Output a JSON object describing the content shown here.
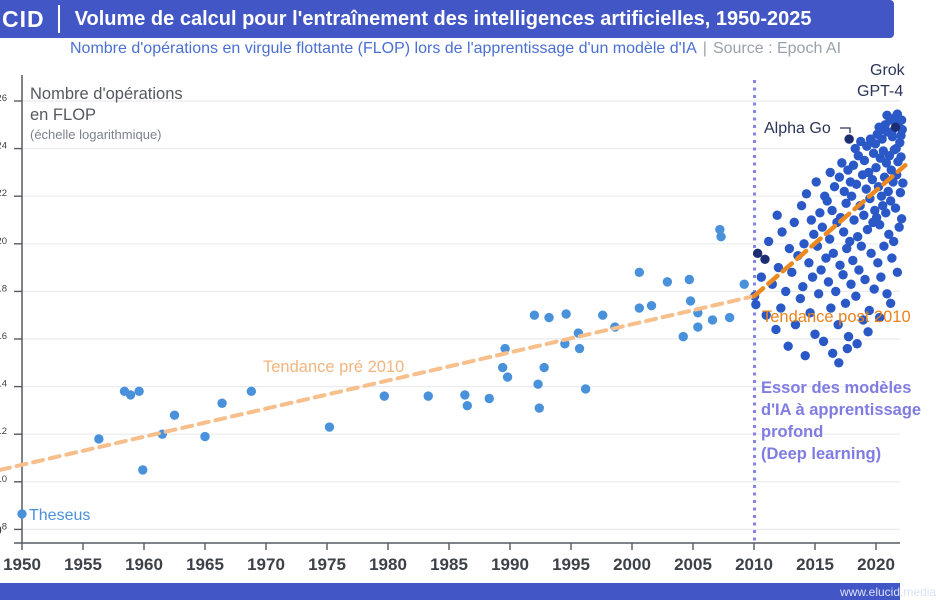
{
  "header": {
    "logo": "CID",
    "title": "Volume de calcul pour l'entraînement des intelligences artificielles, 1950-2025"
  },
  "subtitle": {
    "text": "Nombre d'opérations en virgule flottante (FLOP) lors de l'apprentissage d'un modèle d'IA",
    "separator": "|",
    "source": "Source : Epoch AI"
  },
  "footer": {
    "url": "www.elucid.media"
  },
  "colors": {
    "header_bg": "#4356c6",
    "grid": "#e9ebee",
    "axis": "#565b61",
    "tick_text": "#3d4248",
    "dot_pre": "#4a91dc",
    "dot_post": "#2a58c6",
    "dot_highlight": "#1d2d72",
    "trend_pre": "#f6bf8b",
    "trend_pre_label": "#f3b57d",
    "trend_post": "#eb8a22",
    "trend_post_label": "#e8821c",
    "purple_line": "#8583e6",
    "note_text": "#7f7ce2",
    "annotation_text": "#2b3558",
    "theseus_text": "#4a91dc",
    "plot_label": "#55595f",
    "plot_label_sub": "#7d828a"
  },
  "chart_data": {
    "type": "scatter",
    "x_axis": {
      "label": "",
      "ticks": [
        1950,
        1955,
        1960,
        1965,
        1970,
        1975,
        1980,
        1985,
        1990,
        1995,
        2000,
        2005,
        2010,
        2015,
        2020
      ],
      "range": [
        1948,
        2022.5
      ]
    },
    "y_axis": {
      "scale": "log",
      "unit": "FLOP",
      "tick_exponents": [
        26,
        24,
        22,
        20,
        18,
        16,
        14,
        12,
        10,
        8
      ],
      "range_exponents": [
        7.4,
        27
      ]
    },
    "grid": "horizontal-only",
    "labels": {
      "plot_label_lines": [
        "Nombre d'opérations",
        "en FLOP"
      ],
      "plot_label_sub": "(échelle logarithmique)",
      "trend_pre": "Tendance pré 2010",
      "trend_post": "Tendance post 2010",
      "note_lines": [
        "Essor des modèles",
        "d'IA à apprentissage",
        "profond",
        "(Deep learning)"
      ],
      "theseus": "Theseus",
      "alpha_go": "Alpha Go",
      "grok": "Grok",
      "gpt4": "GPT-4"
    },
    "divider_year": 2010,
    "trend_lines": [
      {
        "name": "pre",
        "label": "Tendance pré 2010",
        "points": [
          [
            1948.2,
            10.5
          ],
          [
            2010.0,
            17.8
          ]
        ]
      },
      {
        "name": "post",
        "label": "Tendance post 2010",
        "points": [
          [
            2010.0,
            17.8
          ],
          [
            2022.4,
            23.3
          ]
        ]
      }
    ],
    "series": [
      {
        "name": "pre-2010",
        "color_key": "dot_pre",
        "points": [
          [
            1950.0,
            8.65
          ],
          [
            1956.3,
            11.8
          ],
          [
            1958.4,
            13.8
          ],
          [
            1958.9,
            13.65
          ],
          [
            1959.6,
            13.8
          ],
          [
            1959.9,
            10.5
          ],
          [
            1961.5,
            12.0
          ],
          [
            1962.5,
            12.8
          ],
          [
            1965.0,
            11.9
          ],
          [
            1966.4,
            13.3
          ],
          [
            1968.8,
            13.8
          ],
          [
            1975.2,
            12.3
          ],
          [
            1979.7,
            13.6
          ],
          [
            1983.3,
            13.6
          ],
          [
            1986.3,
            13.65
          ],
          [
            1986.5,
            13.2
          ],
          [
            1988.3,
            13.5
          ],
          [
            1989.4,
            14.8
          ],
          [
            1989.6,
            15.6
          ],
          [
            1989.8,
            14.4
          ],
          [
            1992.0,
            17.0
          ],
          [
            1992.3,
            14.1
          ],
          [
            1992.4,
            13.1
          ],
          [
            1992.8,
            14.8
          ],
          [
            1993.2,
            16.9
          ],
          [
            1994.5,
            15.8
          ],
          [
            1994.6,
            17.05
          ],
          [
            1995.6,
            16.25
          ],
          [
            1995.7,
            15.6
          ],
          [
            1996.2,
            13.9
          ],
          [
            1997.6,
            17.0
          ],
          [
            1998.6,
            16.5
          ],
          [
            2000.6,
            18.8
          ],
          [
            2000.6,
            17.3
          ],
          [
            2001.6,
            17.4
          ],
          [
            2002.9,
            18.4
          ],
          [
            2004.2,
            16.1
          ],
          [
            2004.7,
            18.5
          ],
          [
            2004.8,
            17.6
          ],
          [
            2005.4,
            17.1
          ],
          [
            2005.4,
            16.5
          ],
          [
            2006.6,
            16.8
          ],
          [
            2007.2,
            20.6
          ],
          [
            2007.3,
            20.3
          ],
          [
            2008.0,
            16.9
          ],
          [
            2009.2,
            18.3
          ]
        ]
      },
      {
        "name": "post-2010",
        "color_key": "dot_post",
        "points": [
          [
            2010.05,
            17.8
          ],
          [
            2010.15,
            17.45
          ],
          [
            2010.6,
            18.6
          ],
          [
            2011.0,
            17.0
          ],
          [
            2011.2,
            20.1
          ],
          [
            2011.5,
            18.3
          ],
          [
            2011.8,
            16.4
          ],
          [
            2011.9,
            21.2
          ],
          [
            2012.0,
            19.0
          ],
          [
            2012.2,
            17.3
          ],
          [
            2012.3,
            20.5
          ],
          [
            2012.6,
            18.0
          ],
          [
            2012.8,
            15.7
          ],
          [
            2012.9,
            19.8
          ],
          [
            2013.1,
            18.8
          ],
          [
            2013.3,
            20.9
          ],
          [
            2013.4,
            16.6
          ],
          [
            2013.6,
            19.5
          ],
          [
            2013.8,
            17.7
          ],
          [
            2013.9,
            21.6
          ],
          [
            2014.0,
            18.2
          ],
          [
            2014.1,
            20.0
          ],
          [
            2014.2,
            15.3
          ],
          [
            2014.3,
            22.1
          ],
          [
            2014.5,
            19.2
          ],
          [
            2014.6,
            17.1
          ],
          [
            2014.7,
            21.0
          ],
          [
            2014.8,
            18.6
          ],
          [
            2014.9,
            20.4
          ],
          [
            2015.0,
            16.2
          ],
          [
            2015.1,
            22.6
          ],
          [
            2015.2,
            19.9
          ],
          [
            2015.3,
            17.9
          ],
          [
            2015.4,
            21.3
          ],
          [
            2015.5,
            18.9
          ],
          [
            2015.6,
            20.7
          ],
          [
            2015.7,
            15.9
          ],
          [
            2015.8,
            22.0
          ],
          [
            2015.9,
            19.4
          ],
          [
            2016.0,
            21.8
          ],
          [
            2016.1,
            18.4
          ],
          [
            2016.2,
            20.2
          ],
          [
            2016.25,
            23.0
          ],
          [
            2016.3,
            17.3
          ],
          [
            2016.4,
            21.4
          ],
          [
            2016.45,
            15.4
          ],
          [
            2016.5,
            19.6
          ],
          [
            2016.6,
            22.4
          ],
          [
            2016.7,
            18.0
          ],
          [
            2016.8,
            20.9
          ],
          [
            2016.9,
            16.6
          ],
          [
            2016.95,
            15.0
          ],
          [
            2017.0,
            22.8
          ],
          [
            2017.05,
            19.1
          ],
          [
            2017.1,
            21.1
          ],
          [
            2017.2,
            23.4
          ],
          [
            2017.3,
            18.7
          ],
          [
            2017.35,
            20.5
          ],
          [
            2017.4,
            22.2
          ],
          [
            2017.5,
            17.5
          ],
          [
            2017.55,
            21.7
          ],
          [
            2017.6,
            19.8
          ],
          [
            2017.65,
            15.6
          ],
          [
            2017.7,
            23.1
          ],
          [
            2017.75,
            16.1
          ],
          [
            2017.85,
            20.1
          ],
          [
            2017.9,
            22.6
          ],
          [
            2017.95,
            18.3
          ],
          [
            2018.0,
            22.0
          ],
          [
            2018.1,
            19.3
          ],
          [
            2018.15,
            23.3
          ],
          [
            2018.2,
            21.0
          ],
          [
            2018.3,
            24.0
          ],
          [
            2018.35,
            17.8
          ],
          [
            2018.4,
            22.5
          ],
          [
            2018.45,
            15.8
          ],
          [
            2018.5,
            20.3
          ],
          [
            2018.55,
            23.7
          ],
          [
            2018.6,
            18.9
          ],
          [
            2018.7,
            21.6
          ],
          [
            2018.75,
            24.3
          ],
          [
            2018.8,
            19.9
          ],
          [
            2018.9,
            22.9
          ],
          [
            2018.95,
            16.8
          ],
          [
            2019.0,
            21.2
          ],
          [
            2019.05,
            23.5
          ],
          [
            2019.1,
            18.5
          ],
          [
            2019.2,
            22.3
          ],
          [
            2019.25,
            24.1
          ],
          [
            2019.3,
            20.6
          ],
          [
            2019.35,
            16.3
          ],
          [
            2019.4,
            23.0
          ],
          [
            2019.45,
            17.2
          ],
          [
            2019.5,
            21.9
          ],
          [
            2019.55,
            24.4
          ],
          [
            2019.6,
            19.6
          ],
          [
            2019.7,
            22.7
          ],
          [
            2019.75,
            20.9
          ],
          [
            2019.8,
            23.8
          ],
          [
            2019.85,
            18.1
          ],
          [
            2019.9,
            21.4
          ],
          [
            2019.95,
            24.2
          ],
          [
            2020.0,
            23.2
          ],
          [
            2020.05,
            21.1
          ],
          [
            2020.1,
            24.6
          ],
          [
            2020.15,
            19.2
          ],
          [
            2020.2,
            22.4
          ],
          [
            2020.25,
            24.9
          ],
          [
            2020.3,
            20.8
          ],
          [
            2020.3,
            16.9
          ],
          [
            2020.35,
            23.6
          ],
          [
            2020.4,
            18.6
          ],
          [
            2020.45,
            22.0
          ],
          [
            2020.5,
            24.4
          ],
          [
            2020.55,
            21.6
          ],
          [
            2020.6,
            24.8
          ],
          [
            2020.6,
            23.9
          ],
          [
            2020.65,
            19.9
          ],
          [
            2020.7,
            22.8
          ],
          [
            2020.75,
            25.0
          ],
          [
            2020.8,
            21.3
          ],
          [
            2020.85,
            23.4
          ],
          [
            2020.9,
            25.4
          ],
          [
            2020.9,
            17.9
          ],
          [
            2020.95,
            24.7
          ],
          [
            2021.0,
            22.2
          ],
          [
            2021.05,
            20.4
          ],
          [
            2021.1,
            23.7
          ],
          [
            2021.15,
            25.2
          ],
          [
            2021.2,
            21.8
          ],
          [
            2021.2,
            17.5
          ],
          [
            2021.25,
            23.1
          ],
          [
            2021.3,
            24.7
          ],
          [
            2021.3,
            19.4
          ],
          [
            2021.35,
            24.5
          ],
          [
            2021.4,
            22.6
          ],
          [
            2021.45,
            20.1
          ],
          [
            2021.5,
            23.95
          ],
          [
            2021.55,
            25.3
          ],
          [
            2021.6,
            21.5
          ],
          [
            2021.65,
            24.0
          ],
          [
            2021.7,
            22.9
          ],
          [
            2021.75,
            25.45
          ],
          [
            2021.75,
            18.8
          ],
          [
            2021.8,
            23.45
          ],
          [
            2021.85,
            25.1
          ],
          [
            2021.9,
            20.7
          ],
          [
            2021.95,
            24.25
          ],
          [
            2022.0,
            22.15
          ],
          [
            2022.05,
            23.65
          ],
          [
            2022.05,
            24.55
          ],
          [
            2022.1,
            21.05
          ],
          [
            2022.1,
            25.2
          ],
          [
            2022.15,
            24.8
          ],
          [
            2022.2,
            22.55
          ]
        ]
      },
      {
        "name": "highlighted-models",
        "color_key": "dot_highlight",
        "points": [
          [
            2010.3,
            19.6
          ],
          [
            2010.9,
            19.35
          ],
          [
            2017.8,
            24.4
          ],
          [
            2021.6,
            24.9
          ]
        ]
      }
    ]
  }
}
